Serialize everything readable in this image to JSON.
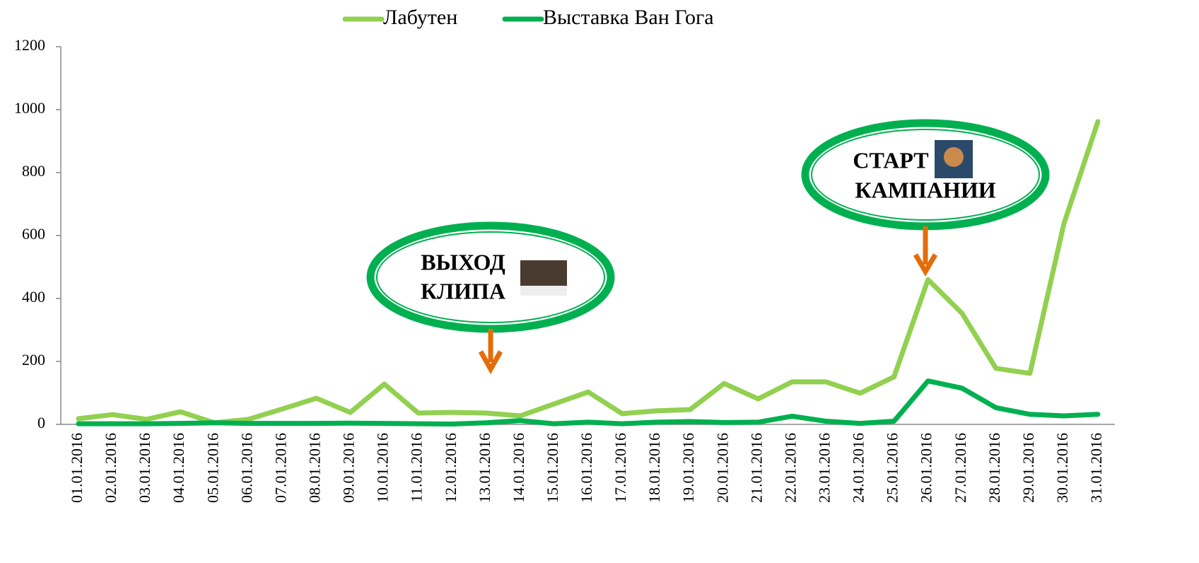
{
  "chart_data": {
    "type": "line",
    "categories": [
      "01.01.2016",
      "02.01.2016",
      "03.01.2016",
      "04.01.2016",
      "05.01.2016",
      "06.01.2016",
      "07.01.2016",
      "08.01.2016",
      "09.01.2016",
      "10.01.2016",
      "11.01.2016",
      "12.01.2016",
      "13.01.2016",
      "14.01.2016",
      "15.01.2016",
      "16.01.2016",
      "17.01.2016",
      "18.01.2016",
      "19.01.2016",
      "20.01.2016",
      "21.01.2016",
      "22.01.2016",
      "23.01.2016",
      "24.01.2016",
      "25.01.2016",
      "26.01.2016",
      "27.01.2016",
      "28.01.2016",
      "29.01.2016",
      "30.01.2016",
      "31.01.2016"
    ],
    "series": [
      {
        "name": "Лабутен",
        "color": "#92d050",
        "values": [
          18,
          31,
          16,
          40,
          5,
          16,
          49,
          83,
          38,
          128,
          36,
          38,
          36,
          27,
          65,
          103,
          34,
          43,
          47,
          130,
          81,
          135,
          135,
          99,
          151,
          460,
          353,
          178,
          162,
          638,
          962
        ]
      },
      {
        "name": "Выставка Ван Гога",
        "color": "#00b050",
        "values": [
          2,
          2,
          2,
          3,
          5,
          3,
          3,
          3,
          4,
          3,
          2,
          1,
          5,
          12,
          2,
          7,
          2,
          7,
          9,
          6,
          7,
          26,
          10,
          3,
          10,
          138,
          115,
          53,
          32,
          27,
          32
        ]
      }
    ],
    "ylim": [
      0,
      1200
    ],
    "yticks": [
      0,
      200,
      400,
      600,
      800,
      1000,
      1200
    ],
    "legend": "top",
    "annotations": [
      {
        "lines": [
          "ВЫХОД",
          "КЛИПА"
        ],
        "color": "#00b050",
        "arrow_color": "#e46c0a"
      },
      {
        "lines": [
          "СТАРТ",
          "КАМПАНИИ"
        ],
        "color": "#00b050",
        "arrow_color": "#e46c0a"
      }
    ]
  }
}
